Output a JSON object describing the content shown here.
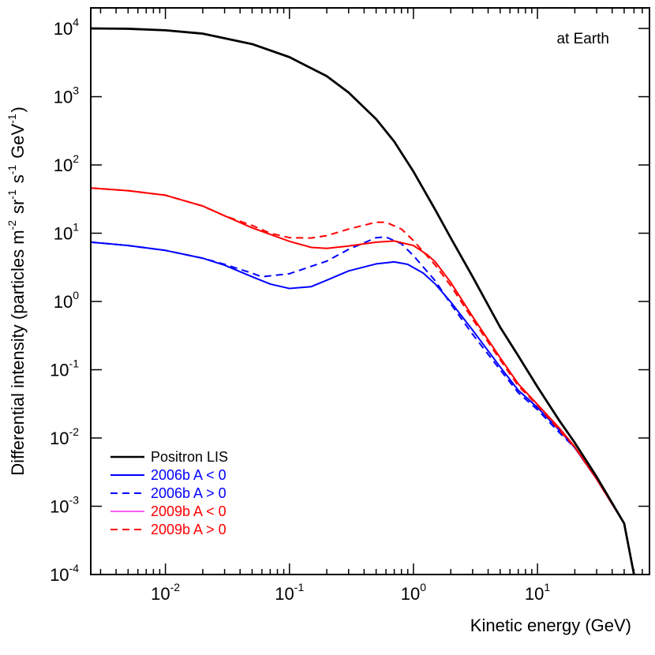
{
  "chart_data": {
    "type": "line",
    "title": "",
    "xlabel": "Kinetic energy (GeV)",
    "ylabel": {
      "prefix": "Differential intensity (particles m",
      "parts": [
        {
          "base": "",
          "exp": "-2"
        },
        {
          "base": " sr",
          "exp": "-1"
        },
        {
          "base": " s",
          "exp": "-1"
        },
        {
          "base": " GeV",
          "exp": "-1"
        }
      ],
      "suffix": ")"
    },
    "xscale": "log",
    "yscale": "log",
    "xlim": [
      0.0025,
      80
    ],
    "ylim": [
      0.0001,
      20000
    ],
    "x_ticks": [
      {
        "value": 0.01,
        "base": "10",
        "exp": "-2"
      },
      {
        "value": 0.1,
        "base": "10",
        "exp": "-1"
      },
      {
        "value": 1,
        "base": "10",
        "exp": "0"
      },
      {
        "value": 10,
        "base": "10",
        "exp": "1"
      }
    ],
    "y_ticks": [
      {
        "value": 0.0001,
        "base": "10",
        "exp": "-4"
      },
      {
        "value": 0.001,
        "base": "10",
        "exp": "-3"
      },
      {
        "value": 0.01,
        "base": "10",
        "exp": "-2"
      },
      {
        "value": 0.1,
        "base": "10",
        "exp": "-1"
      },
      {
        "value": 1,
        "base": "10",
        "exp": "0"
      },
      {
        "value": 10,
        "base": "10",
        "exp": "1"
      },
      {
        "value": 100,
        "base": "10",
        "exp": "2"
      },
      {
        "value": 1000,
        "base": "10",
        "exp": "3"
      },
      {
        "value": 10000,
        "base": "10",
        "exp": "4"
      }
    ],
    "annotation": "at Earth",
    "legend_position": "bottom-left",
    "series": [
      {
        "name": "Positron LIS",
        "color": "#000000",
        "dash": "solid",
        "points": [
          [
            0.0025,
            10000
          ],
          [
            0.005,
            9900
          ],
          [
            0.01,
            9400
          ],
          [
            0.02,
            8400
          ],
          [
            0.05,
            5900
          ],
          [
            0.1,
            3800
          ],
          [
            0.2,
            2000
          ],
          [
            0.3,
            1150
          ],
          [
            0.5,
            470
          ],
          [
            0.7,
            220
          ],
          [
            1,
            80
          ],
          [
            1.5,
            22
          ],
          [
            2,
            8.5
          ],
          [
            3,
            2.3
          ],
          [
            5,
            0.42
          ],
          [
            7,
            0.16
          ],
          [
            10,
            0.056
          ],
          [
            15,
            0.018
          ],
          [
            20,
            0.0085
          ],
          [
            30,
            0.0027
          ],
          [
            50,
            0.00056
          ],
          [
            60,
            0.0001
          ]
        ]
      },
      {
        "name": "2006b A < 0",
        "color": "#0000ff",
        "dash": "solid",
        "points": [
          [
            0.0025,
            7.4
          ],
          [
            0.005,
            6.6
          ],
          [
            0.01,
            5.6
          ],
          [
            0.02,
            4.3
          ],
          [
            0.03,
            3.4
          ],
          [
            0.05,
            2.3
          ],
          [
            0.07,
            1.8
          ],
          [
            0.1,
            1.55
          ],
          [
            0.15,
            1.65
          ],
          [
            0.2,
            2.05
          ],
          [
            0.3,
            2.8
          ],
          [
            0.5,
            3.55
          ],
          [
            0.7,
            3.8
          ],
          [
            0.9,
            3.5
          ],
          [
            1.2,
            2.6
          ],
          [
            1.5,
            1.8
          ],
          [
            2,
            0.98
          ],
          [
            3,
            0.38
          ],
          [
            5,
            0.11
          ],
          [
            7,
            0.05
          ],
          [
            10,
            0.028
          ],
          [
            15,
            0.013
          ],
          [
            20,
            0.0072
          ],
          [
            30,
            0.0025
          ],
          [
            50,
            0.00056
          ],
          [
            60,
            0.0001
          ]
        ]
      },
      {
        "name": "2006b A > 0",
        "color": "#0000ff",
        "dash": "dashed",
        "points": [
          [
            0.0025,
            7.4
          ],
          [
            0.005,
            6.6
          ],
          [
            0.01,
            5.6
          ],
          [
            0.02,
            4.3
          ],
          [
            0.03,
            3.5
          ],
          [
            0.05,
            2.6
          ],
          [
            0.06,
            2.3
          ],
          [
            0.1,
            2.55
          ],
          [
            0.2,
            3.9
          ],
          [
            0.3,
            5.8
          ],
          [
            0.5,
            8.6
          ],
          [
            0.6,
            8.8
          ],
          [
            0.8,
            7.0
          ],
          [
            1.0,
            4.7
          ],
          [
            1.5,
            2.0
          ],
          [
            2,
            0.92
          ],
          [
            3,
            0.33
          ],
          [
            5,
            0.1
          ],
          [
            7,
            0.046
          ],
          [
            10,
            0.026
          ],
          [
            15,
            0.012
          ],
          [
            20,
            0.0072
          ],
          [
            30,
            0.0025
          ],
          [
            50,
            0.00056
          ],
          [
            60,
            0.0001
          ]
        ]
      },
      {
        "name": "2009b A < 0",
        "color": "#ee00ee",
        "dash": "solid",
        "points": [
          [
            0.0025,
            46
          ],
          [
            0.005,
            42
          ],
          [
            0.01,
            36
          ],
          [
            0.02,
            25
          ],
          [
            0.03,
            18
          ],
          [
            0.05,
            12
          ],
          [
            0.1,
            7.6
          ],
          [
            0.15,
            6.2
          ],
          [
            0.2,
            6.0
          ],
          [
            0.3,
            6.5
          ],
          [
            0.5,
            7.4
          ],
          [
            0.7,
            7.7
          ],
          [
            1.0,
            6.6
          ],
          [
            1.3,
            4.8
          ],
          [
            1.5,
            3.8
          ],
          [
            2,
            1.9
          ],
          [
            3,
            0.6
          ],
          [
            5,
            0.15
          ],
          [
            7,
            0.062
          ],
          [
            10,
            0.031
          ],
          [
            15,
            0.014
          ],
          [
            20,
            0.0074
          ],
          [
            30,
            0.0025
          ],
          [
            50,
            0.00056
          ],
          [
            60,
            0.0001
          ]
        ]
      },
      {
        "name": "2009b A > 0",
        "color": "#ff0000",
        "dash": "dashed",
        "points": [
          [
            0.0025,
            46
          ],
          [
            0.005,
            42
          ],
          [
            0.01,
            36
          ],
          [
            0.02,
            25
          ],
          [
            0.03,
            18
          ],
          [
            0.05,
            13
          ],
          [
            0.07,
            10
          ],
          [
            0.1,
            8.6
          ],
          [
            0.15,
            8.5
          ],
          [
            0.2,
            9.2
          ],
          [
            0.3,
            11.5
          ],
          [
            0.5,
            14.5
          ],
          [
            0.6,
            14.5
          ],
          [
            0.8,
            11.5
          ],
          [
            1.0,
            7.8
          ],
          [
            1.5,
            3.4
          ],
          [
            2,
            1.7
          ],
          [
            3,
            0.55
          ],
          [
            5,
            0.14
          ],
          [
            7,
            0.058
          ],
          [
            10,
            0.03
          ],
          [
            15,
            0.013
          ],
          [
            20,
            0.0073
          ],
          [
            30,
            0.0025
          ],
          [
            50,
            0.00056
          ],
          [
            60,
            0.0001
          ]
        ]
      }
    ],
    "extra_lines": [
      {
        "color": "#ff0000",
        "dash": "solid",
        "points": [
          [
            0.0025,
            46
          ],
          [
            0.005,
            42
          ],
          [
            0.01,
            36
          ],
          [
            0.02,
            25
          ],
          [
            0.03,
            18
          ],
          [
            0.05,
            12
          ],
          [
            0.1,
            7.6
          ],
          [
            0.15,
            6.2
          ],
          [
            0.2,
            6.0
          ],
          [
            0.3,
            6.5
          ],
          [
            0.5,
            7.4
          ],
          [
            0.7,
            7.7
          ],
          [
            1.0,
            6.6
          ],
          [
            1.3,
            4.8
          ],
          [
            1.5,
            3.8
          ],
          [
            2,
            1.9
          ],
          [
            3,
            0.6
          ],
          [
            5,
            0.15
          ],
          [
            7,
            0.062
          ],
          [
            10,
            0.031
          ],
          [
            15,
            0.014
          ],
          [
            20,
            0.0074
          ],
          [
            30,
            0.0025
          ],
          [
            50,
            0.00056
          ],
          [
            60,
            0.0001
          ]
        ]
      }
    ],
    "legend": [
      {
        "label": "Positron LIS",
        "color": "#000000",
        "text_color": "#000000",
        "dash": "solid",
        "width": 2.5
      },
      {
        "label": "2006b A < 0",
        "color": "#0000ff",
        "text_color": "#0000ff",
        "dash": "solid",
        "width": 2
      },
      {
        "label": "2006b A > 0",
        "color": "#0000ff",
        "text_color": "#0000ff",
        "dash": "dashed",
        "width": 2
      },
      {
        "label": "2009b A < 0",
        "color": "#ee00ee",
        "text_color": "#ff0000",
        "dash": "solid",
        "width": 1.2
      },
      {
        "label": "2009b A > 0",
        "color": "#ff0000",
        "text_color": "#ff0000",
        "dash": "dashed",
        "width": 2
      }
    ]
  }
}
